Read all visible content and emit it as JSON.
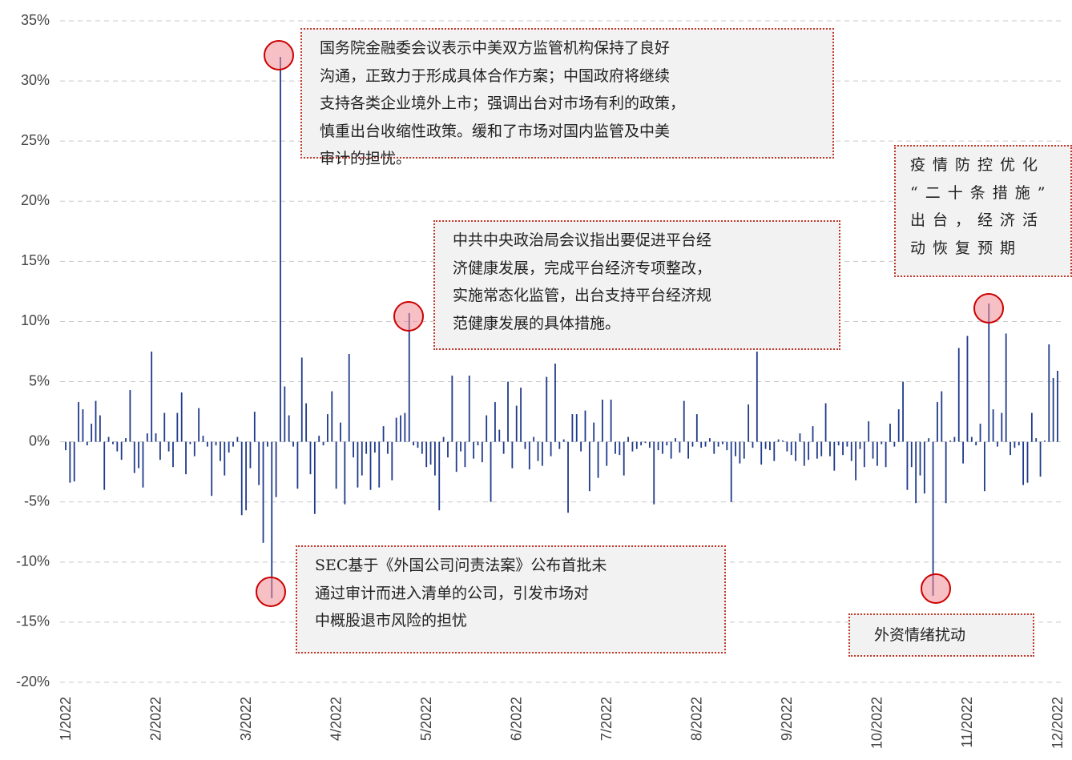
{
  "chart_data": {
    "type": "bar",
    "categories": [
      "1/2022",
      null,
      null,
      null,
      null,
      null,
      null,
      null,
      null,
      null,
      null,
      null,
      null,
      null,
      null,
      null,
      null,
      null,
      null,
      null,
      null,
      "2/2022",
      null,
      null,
      null,
      null,
      null,
      null,
      null,
      null,
      null,
      null,
      null,
      null,
      null,
      null,
      null,
      null,
      null,
      null,
      null,
      null,
      "3/2022",
      null,
      null,
      null,
      null,
      null,
      null,
      null,
      null,
      null,
      null,
      null,
      null,
      null,
      null,
      null,
      null,
      null,
      null,
      null,
      null,
      "4/2022",
      null,
      null,
      null,
      null,
      null,
      null,
      null,
      null,
      null,
      null,
      null,
      null,
      null,
      null,
      null,
      null,
      null,
      null,
      null,
      null,
      "5/2022",
      null,
      null,
      null,
      null,
      null,
      null,
      null,
      null,
      null,
      null,
      null,
      null,
      null,
      null,
      null,
      null,
      null,
      null,
      null,
      null,
      "6/2022",
      null,
      null,
      null,
      null,
      null,
      null,
      null,
      null,
      null,
      null,
      null,
      null,
      null,
      null,
      null,
      null,
      null,
      null,
      null,
      null,
      "7/2022",
      null,
      null,
      null,
      null,
      null,
      null,
      null,
      null,
      null,
      null,
      null,
      null,
      null,
      null,
      null,
      null,
      null,
      null,
      null,
      null,
      "8/2022",
      null,
      null,
      null,
      null,
      null,
      null,
      null,
      null,
      null,
      null,
      null,
      null,
      null,
      null,
      null,
      null,
      null,
      null,
      null,
      null,
      "9/2022",
      null,
      null,
      null,
      null,
      null,
      null,
      null,
      null,
      null,
      null,
      null,
      null,
      null,
      null,
      null,
      null,
      null,
      null,
      null,
      null,
      "10/2022",
      null,
      null,
      null,
      null,
      null,
      null,
      null,
      null,
      null,
      null,
      null,
      null,
      null,
      null,
      null,
      null,
      null,
      null,
      null,
      null,
      "11/2022",
      null,
      null,
      null,
      null,
      null,
      null,
      null,
      null,
      null,
      null,
      null,
      null,
      null,
      null,
      null,
      null,
      null,
      null,
      null,
      null,
      "12/2022"
    ],
    "values": [
      -0.7,
      -3.4,
      -3.3,
      3.3,
      2.7,
      -0.3,
      1.5,
      3.4,
      2.2,
      -4.0,
      0.4,
      -0.2,
      -0.8,
      -1.5,
      0.3,
      4.3,
      -2.6,
      -2.2,
      -3.8,
      0.7,
      7.5,
      0.7,
      -1.5,
      2.4,
      -0.8,
      -2.1,
      2.4,
      4.1,
      -2.7,
      -0.2,
      -1.2,
      2.8,
      0.5,
      -0.4,
      -4.5,
      -0.3,
      -1.6,
      -2.8,
      -0.9,
      -0.4,
      0.4,
      -6.1,
      -5.7,
      -2.2,
      2.5,
      -3.6,
      -8.4,
      -0.4,
      -13.0,
      -4.6,
      32.0,
      4.6,
      2.2,
      -0.4,
      -3.9,
      7.0,
      3.2,
      -2.7,
      -6.0,
      0.5,
      -0.3,
      2.3,
      4.2,
      -3.9,
      1.6,
      -5.2,
      7.3,
      -1.3,
      -3.8,
      -2.8,
      -1.0,
      -4.0,
      -0.9,
      -3.8,
      1.3,
      -1.0,
      -3.2,
      2.0,
      2.2,
      2.4,
      10.7,
      -0.3,
      -0.5,
      -1.0,
      -2.1,
      -1.9,
      -2.8,
      -5.7,
      0.4,
      -1.3,
      5.5,
      -2.5,
      -0.8,
      -2.1,
      5.5,
      -1.4,
      -0.3,
      -1.7,
      2.2,
      -5.0,
      3.3,
      1.0,
      -1.0,
      5.0,
      -2.2,
      3.0,
      4.5,
      -0.6,
      -2.3,
      0.4,
      -1.6,
      -2.0,
      5.4,
      -1.2,
      6.5,
      -0.6,
      0.2,
      -5.9,
      2.3,
      2.3,
      -0.8,
      2.6,
      -4.1,
      1.6,
      -3.0,
      3.5,
      -2.0,
      3.5,
      -1.0,
      -1.1,
      -2.8,
      0.4,
      -0.8,
      -0.6,
      -0.3,
      -0.1,
      -0.5,
      -5.2,
      -0.7,
      -1.0,
      -0.3,
      -1.4,
      0.3,
      -0.9,
      3.4,
      -1.4,
      -0.4,
      2.3,
      -0.5,
      -0.4,
      0.3,
      -1.0,
      -0.4,
      -0.2,
      -0.7,
      -5.0,
      -1.2,
      -1.8,
      -1.4,
      3.1,
      -0.5,
      7.5,
      -1.9,
      -0.6,
      -0.7,
      -1.6,
      0.2,
      0.1,
      -0.8,
      -1.1,
      -1.6,
      0.7,
      -2.0,
      -1.5,
      1.3,
      -1.4,
      -1.2,
      3.2,
      -1.2,
      -2.4,
      -0.3,
      -1.1,
      -0.4,
      -1.6,
      -3.2,
      -0.6,
      -2.1,
      1.7,
      -1.4,
      -2.0,
      -0.2,
      -2.1,
      1.5,
      -0.4,
      2.7,
      5.0,
      -4.0,
      -2.1,
      -5.1,
      -2.8,
      -4.3,
      0.3,
      -12.8,
      3.3,
      4.2,
      -5.1,
      0.1,
      0.4,
      7.8,
      -1.8,
      8.8,
      0.4,
      -0.3,
      1.5,
      -4.1,
      11.5,
      2.7,
      -0.4,
      2.4,
      9.0,
      -1.1,
      -0.5,
      -0.3,
      -3.6,
      -3.4,
      2.4,
      0.3,
      -2.9,
      0.1,
      8.1,
      5.3,
      5.9
    ],
    "color": "#1f3a8a",
    "ylim": [
      -20,
      35
    ],
    "yticks": [
      {
        "value": -20,
        "label": "-20%"
      },
      {
        "value": -15,
        "label": "-15%"
      },
      {
        "value": -10,
        "label": "-10%"
      },
      {
        "value": -5,
        "label": "-5%"
      },
      {
        "value": 0,
        "label": "0%"
      },
      {
        "value": 5,
        "label": "5%"
      },
      {
        "value": 10,
        "label": "10%"
      },
      {
        "value": 15,
        "label": "15%"
      },
      {
        "value": 20,
        "label": "20%"
      },
      {
        "value": 25,
        "label": "25%"
      },
      {
        "value": 30,
        "label": "30%"
      },
      {
        "value": 35,
        "label": "35%"
      }
    ],
    "grid": true,
    "annotations": [
      [
        "国务院金融委会议表示中美双方监管机构保持了良好",
        "沟通，正致力于形成具体合作方案；中国政府将继续",
        "支持各类企业境外上市；强调出台对市场有利的政策，",
        "慎重出台收缩性政策。缓和了市场对国内监管及中美",
        "审计的担忧。"
      ],
      [
        "中共中央政治局会议指出要促进平台经",
        "济健康发展，完成平台经济专项整改，",
        "实施常态化监管，出台支持平台经济规",
        "范健康发展的具体措施。"
      ],
      [
        "疫情防控优化",
        "“二十条措施”",
        "出台，经济活",
        "动恢复预期"
      ],
      [
        "SEC基于《外国公司问责法案》公布首批未",
        "通过审计而进入清单的公司，引发市场对",
        "中概股退市风险的担忧"
      ],
      [
        "外资情绪扰动"
      ]
    ]
  }
}
